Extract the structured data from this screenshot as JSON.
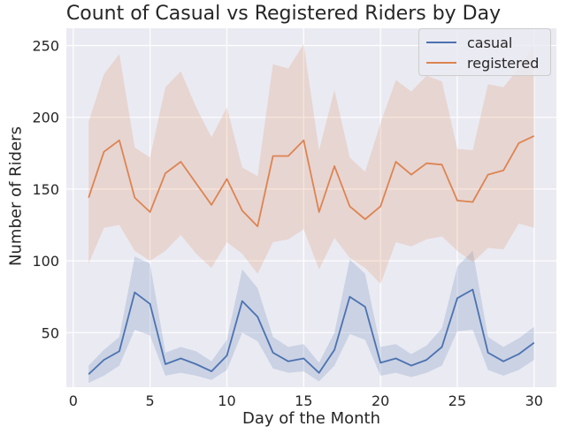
{
  "chart_data": {
    "type": "line",
    "title": "Count of Casual vs Registered Riders by Day",
    "xlabel": "Day of the Month",
    "ylabel": "Number of Riders",
    "xlim": [
      -0.45,
      31.45
    ],
    "ylim": [
      12,
      262
    ],
    "xticks": [
      0,
      5,
      10,
      15,
      20,
      25,
      30
    ],
    "yticks": [
      50,
      100,
      150,
      200,
      250
    ],
    "grid": true,
    "legend_position": "top-right",
    "x": [
      1,
      2,
      3,
      4,
      5,
      6,
      7,
      8,
      9,
      10,
      11,
      12,
      13,
      14,
      15,
      16,
      17,
      18,
      19,
      20,
      21,
      22,
      23,
      24,
      25,
      26,
      27,
      28,
      29,
      30
    ],
    "series": [
      {
        "name": "casual",
        "color": "#4c72b0",
        "values": [
          21,
          31,
          37,
          78,
          70,
          28,
          32,
          28,
          23,
          34,
          72,
          61,
          36,
          30,
          32,
          22,
          38,
          75,
          68,
          29,
          32,
          27,
          31,
          40,
          74,
          80,
          36,
          30,
          35,
          43
        ],
        "ci_low": [
          15,
          20,
          27,
          52,
          48,
          20,
          22,
          20,
          17,
          24,
          50,
          44,
          25,
          22,
          23,
          16,
          27,
          49,
          45,
          20,
          22,
          19,
          22,
          27,
          51,
          52,
          24,
          20,
          24,
          31
        ],
        "ci_high": [
          27,
          38,
          47,
          103,
          98,
          36,
          40,
          37,
          30,
          45,
          94,
          81,
          47,
          40,
          42,
          29,
          50,
          101,
          91,
          40,
          42,
          35,
          41,
          53,
          96,
          107,
          47,
          40,
          46,
          54
        ]
      },
      {
        "name": "registered",
        "color": "#dd8452",
        "values": [
          144,
          176,
          184,
          144,
          134,
          161,
          169,
          154,
          139,
          157,
          135,
          124,
          173,
          173,
          184,
          134,
          166,
          138,
          129,
          138,
          169,
          160,
          168,
          167,
          142,
          141,
          160,
          163,
          182,
          187
        ],
        "ci_low": [
          98,
          123,
          125,
          107,
          100,
          107,
          118,
          105,
          95,
          113,
          105,
          91,
          113,
          115,
          122,
          94,
          116,
          102,
          95,
          84,
          113,
          110,
          115,
          117,
          107,
          99,
          109,
          108,
          126,
          123
        ],
        "ci_high": [
          197,
          230,
          244,
          179,
          172,
          221,
          232,
          207,
          186,
          207,
          165,
          159,
          237,
          234,
          251,
          177,
          219,
          172,
          162,
          196,
          226,
          218,
          229,
          225,
          178,
          177,
          223,
          221,
          234,
          250
        ]
      }
    ]
  }
}
